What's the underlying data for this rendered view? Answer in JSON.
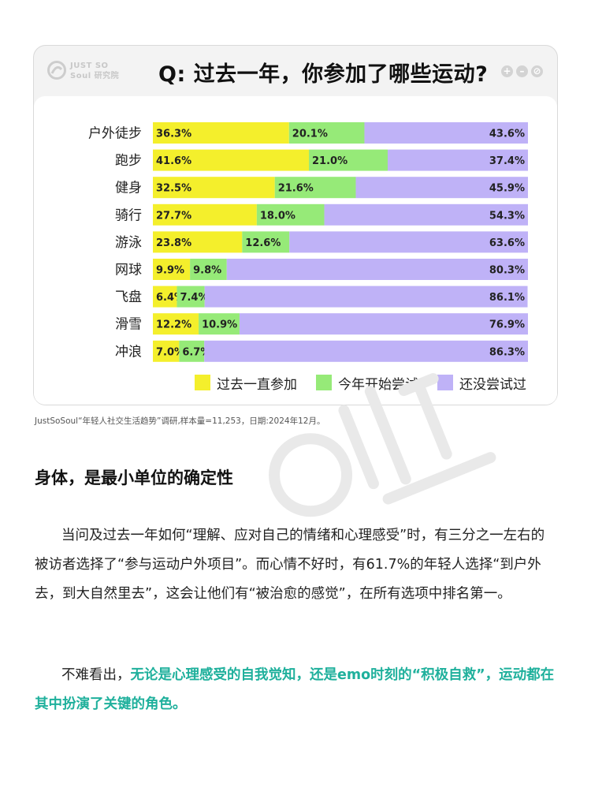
{
  "header": {
    "logo_text": "JUST SO\nSoul 研究院",
    "question": "Q: 过去一年，你参加了哪些运动?",
    "window_controls": [
      "+",
      "–",
      "⊘"
    ]
  },
  "colors": {
    "past_year": "#f4ef2c",
    "started_this_year": "#96ea78",
    "not_tried": "#bfb2f7"
  },
  "chart_data": {
    "type": "bar",
    "orientation": "horizontal",
    "stacked": true,
    "categories": [
      "户外徒步",
      "跑步",
      "健身",
      "骑行",
      "游泳",
      "网球",
      "飞盘",
      "滑雪",
      "冲浪"
    ],
    "series": [
      {
        "name": "过去一直参加",
        "values": [
          36.3,
          41.6,
          32.5,
          27.7,
          23.8,
          9.9,
          6.4,
          12.2,
          7.0
        ]
      },
      {
        "name": "今年开始尝试",
        "values": [
          20.1,
          21.0,
          21.6,
          18.0,
          12.6,
          9.8,
          7.4,
          10.9,
          6.7
        ]
      },
      {
        "name": "还没尝试过",
        "values": [
          43.6,
          37.4,
          45.9,
          54.3,
          63.6,
          80.3,
          86.1,
          76.9,
          86.3
        ]
      }
    ],
    "value_suffix": "%",
    "xlim": [
      0,
      100
    ],
    "grid": false,
    "legend_position": "bottom-right"
  },
  "source_note": "JustSoSoul“年轻人社交生活趋势”调研,样本量=11,253，日期:2024年12月。",
  "article": {
    "section_title": "身体，是最小单位的确定性",
    "paragraph1": "当问及过去一年如何“理解、应对自己的情绪和心理感受”时，有三分之一左右的被访者选择了“参与运动户外项目”。而心情不好时，有61.7%的年轻人选择“到户外去，到大自然里去”，这会让他们有“被治愈的感觉”，在所有选项中排名第一。",
    "paragraph2_lead": "不难看出，",
    "paragraph2_highlight": "无论是心理感受的自我觉知，还是emo时刻的“积极自救”，运动都在其中扮演了关键的角色。"
  }
}
